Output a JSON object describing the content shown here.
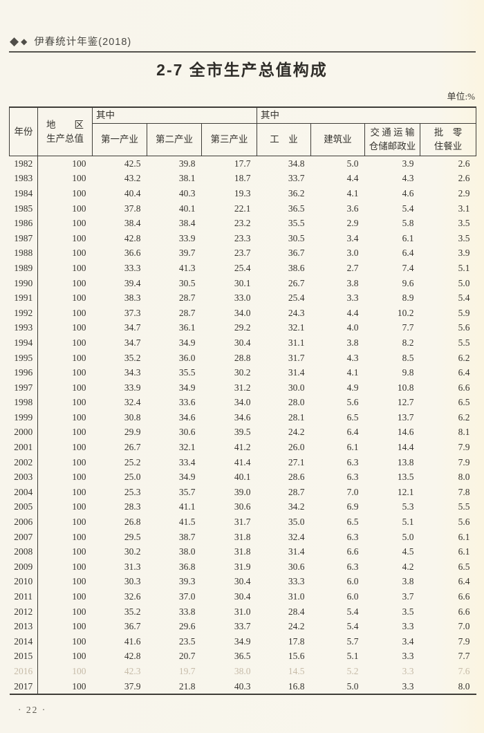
{
  "page": {
    "brand": "伊春统计年鉴(2018)",
    "title": "2-7  全市生产总值构成",
    "unit_label": "单位:%",
    "page_number": "· 22 ·"
  },
  "icons": {
    "diamond_large": "◆",
    "diamond_small": "◆"
  },
  "table": {
    "header": {
      "year": "年份",
      "gdp_line1": "地　　区",
      "gdp_line2": "生产总值",
      "of_which_left": "其中",
      "of_which_right": "其中",
      "col_primary": "第一产业",
      "col_secondary": "第二产业",
      "col_tertiary": "第三产业",
      "col_industry": "工　业",
      "col_construction": "建筑业",
      "col_transport_line1": "交 通 运 输",
      "col_transport_line2": "仓储邮政业",
      "col_retail_line1": "批　零",
      "col_retail_line2": "住餐业"
    },
    "faded_years": [
      "2016"
    ],
    "rows": [
      [
        "1982",
        "100",
        "42.5",
        "39.8",
        "17.7",
        "34.8",
        "5.0",
        "3.9",
        "2.6"
      ],
      [
        "1983",
        "100",
        "43.2",
        "38.1",
        "18.7",
        "33.7",
        "4.4",
        "4.3",
        "2.6"
      ],
      [
        "1984",
        "100",
        "40.4",
        "40.3",
        "19.3",
        "36.2",
        "4.1",
        "4.6",
        "2.9"
      ],
      [
        "1985",
        "100",
        "37.8",
        "40.1",
        "22.1",
        "36.5",
        "3.6",
        "5.4",
        "3.1"
      ],
      [
        "1986",
        "100",
        "38.4",
        "38.4",
        "23.2",
        "35.5",
        "2.9",
        "5.8",
        "3.5"
      ],
      [
        "1987",
        "100",
        "42.8",
        "33.9",
        "23.3",
        "30.5",
        "3.4",
        "6.1",
        "3.5"
      ],
      [
        "1988",
        "100",
        "36.6",
        "39.7",
        "23.7",
        "36.7",
        "3.0",
        "6.4",
        "3.9"
      ],
      [
        "1989",
        "100",
        "33.3",
        "41.3",
        "25.4",
        "38.6",
        "2.7",
        "7.4",
        "5.1"
      ],
      [
        "1990",
        "100",
        "39.4",
        "30.5",
        "30.1",
        "26.7",
        "3.8",
        "9.6",
        "5.0"
      ],
      [
        "1991",
        "100",
        "38.3",
        "28.7",
        "33.0",
        "25.4",
        "3.3",
        "8.9",
        "5.4"
      ],
      [
        "1992",
        "100",
        "37.3",
        "28.7",
        "34.0",
        "24.3",
        "4.4",
        "10.2",
        "5.9"
      ],
      [
        "1993",
        "100",
        "34.7",
        "36.1",
        "29.2",
        "32.1",
        "4.0",
        "7.7",
        "5.6"
      ],
      [
        "1994",
        "100",
        "34.7",
        "34.9",
        "30.4",
        "31.1",
        "3.8",
        "8.2",
        "5.5"
      ],
      [
        "1995",
        "100",
        "35.2",
        "36.0",
        "28.8",
        "31.7",
        "4.3",
        "8.5",
        "6.2"
      ],
      [
        "1996",
        "100",
        "34.3",
        "35.5",
        "30.2",
        "31.4",
        "4.1",
        "9.8",
        "6.4"
      ],
      [
        "1997",
        "100",
        "33.9",
        "34.9",
        "31.2",
        "30.0",
        "4.9",
        "10.8",
        "6.6"
      ],
      [
        "1998",
        "100",
        "32.4",
        "33.6",
        "34.0",
        "28.0",
        "5.6",
        "12.7",
        "6.5"
      ],
      [
        "1999",
        "100",
        "30.8",
        "34.6",
        "34.6",
        "28.1",
        "6.5",
        "13.7",
        "6.2"
      ],
      [
        "2000",
        "100",
        "29.9",
        "30.6",
        "39.5",
        "24.2",
        "6.4",
        "14.6",
        "8.1"
      ],
      [
        "2001",
        "100",
        "26.7",
        "32.1",
        "41.2",
        "26.0",
        "6.1",
        "14.4",
        "7.9"
      ],
      [
        "2002",
        "100",
        "25.2",
        "33.4",
        "41.4",
        "27.1",
        "6.3",
        "13.8",
        "7.9"
      ],
      [
        "2003",
        "100",
        "25.0",
        "34.9",
        "40.1",
        "28.6",
        "6.3",
        "13.5",
        "8.0"
      ],
      [
        "2004",
        "100",
        "25.3",
        "35.7",
        "39.0",
        "28.7",
        "7.0",
        "12.1",
        "7.8"
      ],
      [
        "2005",
        "100",
        "28.3",
        "41.1",
        "30.6",
        "34.2",
        "6.9",
        "5.3",
        "5.5"
      ],
      [
        "2006",
        "100",
        "26.8",
        "41.5",
        "31.7",
        "35.0",
        "6.5",
        "5.1",
        "5.6"
      ],
      [
        "2007",
        "100",
        "29.5",
        "38.7",
        "31.8",
        "32.4",
        "6.3",
        "5.0",
        "6.1"
      ],
      [
        "2008",
        "100",
        "30.2",
        "38.0",
        "31.8",
        "31.4",
        "6.6",
        "4.5",
        "6.1"
      ],
      [
        "2009",
        "100",
        "31.3",
        "36.8",
        "31.9",
        "30.6",
        "6.3",
        "4.2",
        "6.5"
      ],
      [
        "2010",
        "100",
        "30.3",
        "39.3",
        "30.4",
        "33.3",
        "6.0",
        "3.8",
        "6.4"
      ],
      [
        "2011",
        "100",
        "32.6",
        "37.0",
        "30.4",
        "31.0",
        "6.0",
        "3.7",
        "6.6"
      ],
      [
        "2012",
        "100",
        "35.2",
        "33.8",
        "31.0",
        "28.4",
        "5.4",
        "3.5",
        "6.6"
      ],
      [
        "2013",
        "100",
        "36.7",
        "29.6",
        "33.7",
        "24.2",
        "5.4",
        "3.3",
        "7.0"
      ],
      [
        "2014",
        "100",
        "41.6",
        "23.5",
        "34.9",
        "17.8",
        "5.7",
        "3.4",
        "7.9"
      ],
      [
        "2015",
        "100",
        "42.8",
        "20.7",
        "36.5",
        "15.6",
        "5.1",
        "3.3",
        "7.7"
      ],
      [
        "2016",
        "100",
        "42.3",
        "19.7",
        "38.0",
        "14.5",
        "5.2",
        "3.3",
        "7.6"
      ],
      [
        "2017",
        "100",
        "37.9",
        "21.8",
        "40.3",
        "16.8",
        "5.0",
        "3.3",
        "8.0"
      ]
    ]
  }
}
